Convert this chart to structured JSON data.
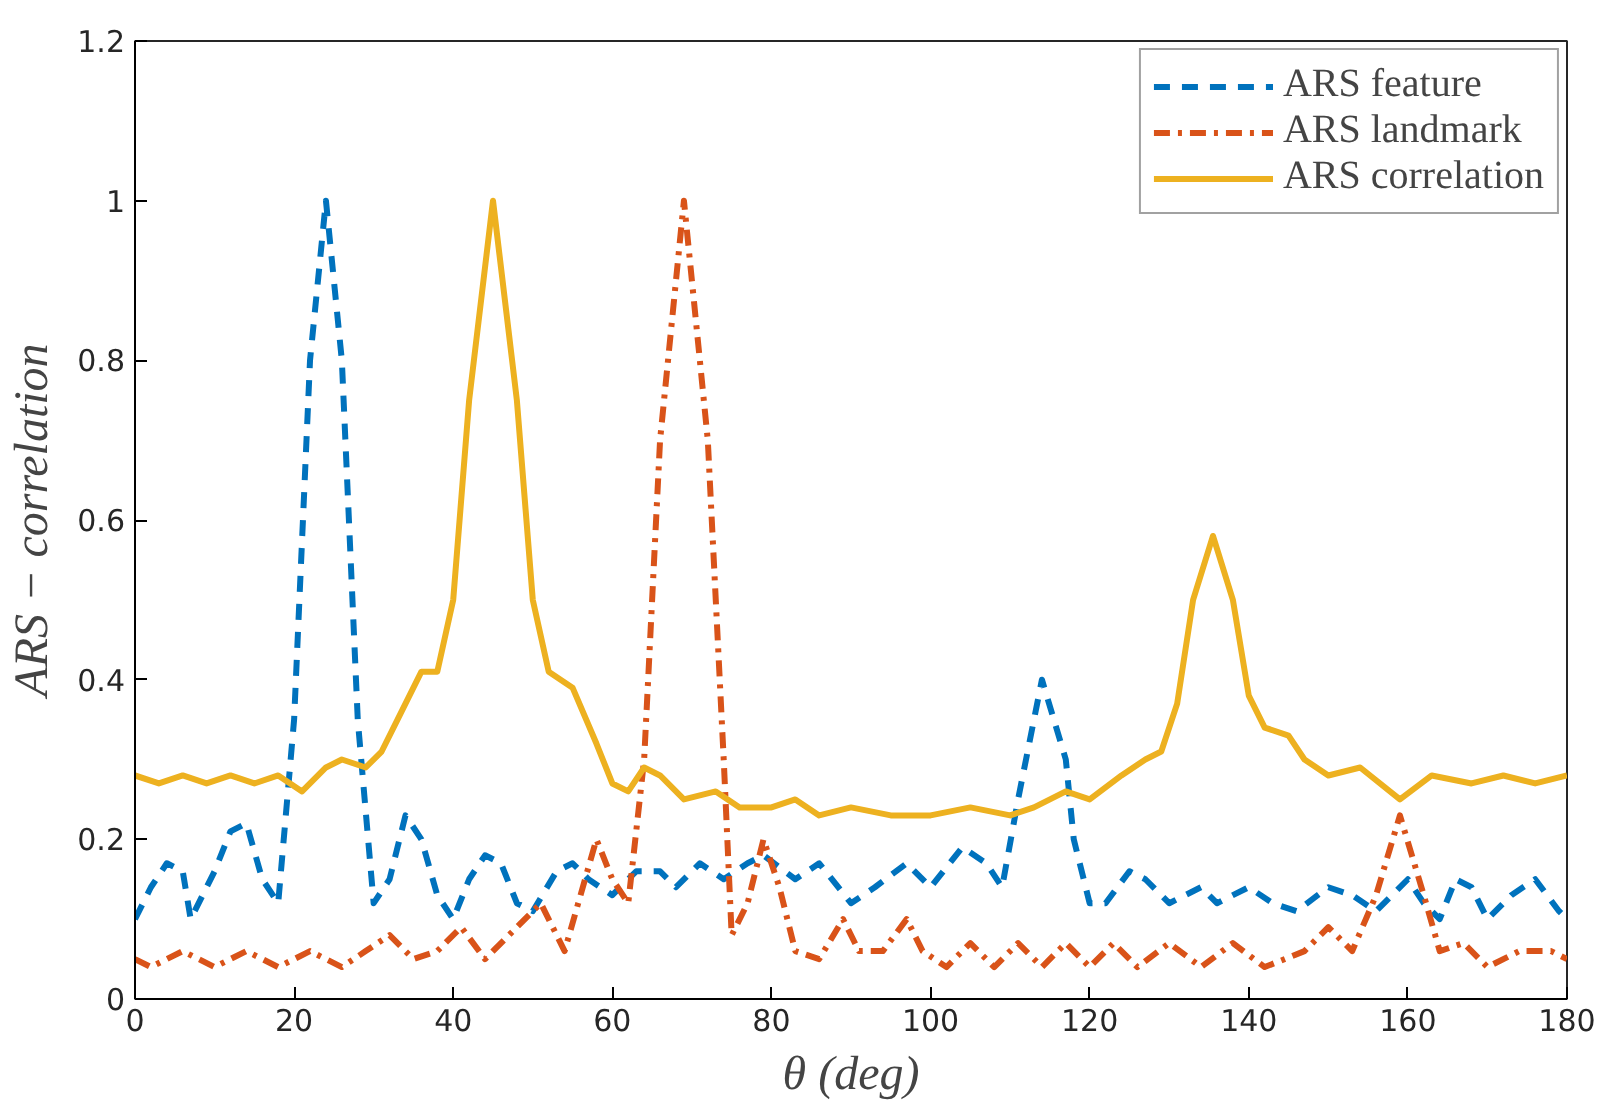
{
  "chart_data": {
    "type": "line",
    "xlabel": "θ (deg)",
    "ylabel": "ARS − correlation",
    "xlim": [
      0,
      180
    ],
    "ylim": [
      0,
      1.2
    ],
    "xticks": [
      0,
      20,
      40,
      60,
      80,
      100,
      120,
      140,
      160,
      180
    ],
    "yticks": [
      0,
      0.2,
      0.4,
      0.6,
      0.8,
      1,
      1.2
    ],
    "grid": false,
    "legend": "top right",
    "series": [
      {
        "name": "ARS feature",
        "color": "#0072bd",
        "line_style": "dashed",
        "x": [
          0,
          2,
          4,
          6,
          7,
          10,
          12,
          14,
          16,
          18,
          20,
          22,
          24,
          26,
          28,
          30,
          32,
          34,
          36,
          38,
          40,
          42,
          44,
          46,
          48,
          50,
          53,
          55,
          57,
          60,
          63,
          66,
          68,
          71,
          74,
          77,
          79,
          83,
          86,
          90,
          93,
          97,
          100,
          104,
          107,
          109,
          111,
          114,
          117,
          118,
          120,
          122,
          125,
          127,
          130,
          134,
          136,
          140,
          143,
          146,
          150,
          153,
          156,
          160,
          162,
          164,
          166,
          168,
          170,
          173,
          176,
          179,
          180
        ],
        "values": [
          0.1,
          0.14,
          0.17,
          0.16,
          0.1,
          0.16,
          0.21,
          0.22,
          0.15,
          0.12,
          0.35,
          0.8,
          1.0,
          0.8,
          0.35,
          0.12,
          0.15,
          0.23,
          0.2,
          0.13,
          0.1,
          0.15,
          0.18,
          0.17,
          0.12,
          0.11,
          0.16,
          0.17,
          0.15,
          0.13,
          0.16,
          0.16,
          0.14,
          0.17,
          0.15,
          0.17,
          0.18,
          0.15,
          0.17,
          0.12,
          0.14,
          0.17,
          0.14,
          0.19,
          0.17,
          0.14,
          0.25,
          0.4,
          0.3,
          0.2,
          0.12,
          0.12,
          0.16,
          0.15,
          0.12,
          0.14,
          0.12,
          0.14,
          0.12,
          0.11,
          0.14,
          0.13,
          0.11,
          0.15,
          0.12,
          0.1,
          0.15,
          0.14,
          0.1,
          0.13,
          0.15,
          0.11,
          0.1
        ]
      },
      {
        "name": "ARS landmark",
        "color": "#d95319",
        "line_style": "dashdot",
        "x": [
          0,
          2,
          6,
          10,
          14,
          18,
          22,
          26,
          29,
          32,
          35,
          38,
          41,
          44,
          48,
          51,
          54,
          56,
          58,
          60,
          62,
          64,
          66,
          69,
          72,
          74,
          75,
          77,
          79,
          81,
          83,
          86,
          89,
          91,
          94,
          97,
          99,
          102,
          105,
          108,
          111,
          114,
          117,
          120,
          123,
          126,
          130,
          134,
          138,
          142,
          147,
          150,
          153,
          156,
          159,
          162,
          164,
          167,
          170,
          174,
          178,
          180
        ],
        "values": [
          0.05,
          0.04,
          0.06,
          0.04,
          0.06,
          0.04,
          0.06,
          0.04,
          0.06,
          0.08,
          0.05,
          0.06,
          0.09,
          0.05,
          0.09,
          0.12,
          0.06,
          0.13,
          0.2,
          0.15,
          0.12,
          0.3,
          0.7,
          1.0,
          0.7,
          0.3,
          0.08,
          0.12,
          0.2,
          0.14,
          0.06,
          0.05,
          0.1,
          0.06,
          0.06,
          0.1,
          0.06,
          0.04,
          0.07,
          0.04,
          0.07,
          0.04,
          0.07,
          0.04,
          0.07,
          0.04,
          0.07,
          0.04,
          0.07,
          0.04,
          0.06,
          0.09,
          0.06,
          0.13,
          0.23,
          0.13,
          0.06,
          0.07,
          0.04,
          0.06,
          0.06,
          0.05
        ]
      },
      {
        "name": "ARS correlation",
        "color": "#edb120",
        "line_style": "solid",
        "x": [
          0,
          3,
          6,
          9,
          12,
          15,
          18,
          21,
          24,
          26,
          29,
          31,
          33,
          36,
          38,
          40,
          42,
          45,
          48,
          50,
          52,
          55,
          58,
          60,
          62,
          64,
          66,
          69,
          73,
          76,
          80,
          83,
          86,
          90,
          95,
          100,
          105,
          110,
          113,
          117,
          120,
          124,
          127,
          129,
          131,
          133,
          135.5,
          138,
          140,
          142,
          145,
          147,
          150,
          154,
          159,
          163,
          168,
          172,
          176,
          180
        ],
        "values": [
          0.28,
          0.27,
          0.28,
          0.27,
          0.28,
          0.27,
          0.28,
          0.26,
          0.29,
          0.3,
          0.29,
          0.31,
          0.35,
          0.41,
          0.41,
          0.5,
          0.75,
          1.0,
          0.75,
          0.5,
          0.41,
          0.39,
          0.32,
          0.27,
          0.26,
          0.29,
          0.28,
          0.25,
          0.26,
          0.24,
          0.24,
          0.25,
          0.23,
          0.24,
          0.23,
          0.23,
          0.24,
          0.23,
          0.24,
          0.26,
          0.25,
          0.28,
          0.3,
          0.31,
          0.37,
          0.5,
          0.58,
          0.5,
          0.38,
          0.34,
          0.33,
          0.3,
          0.28,
          0.29,
          0.25,
          0.28,
          0.27,
          0.28,
          0.27,
          0.28
        ]
      }
    ]
  }
}
